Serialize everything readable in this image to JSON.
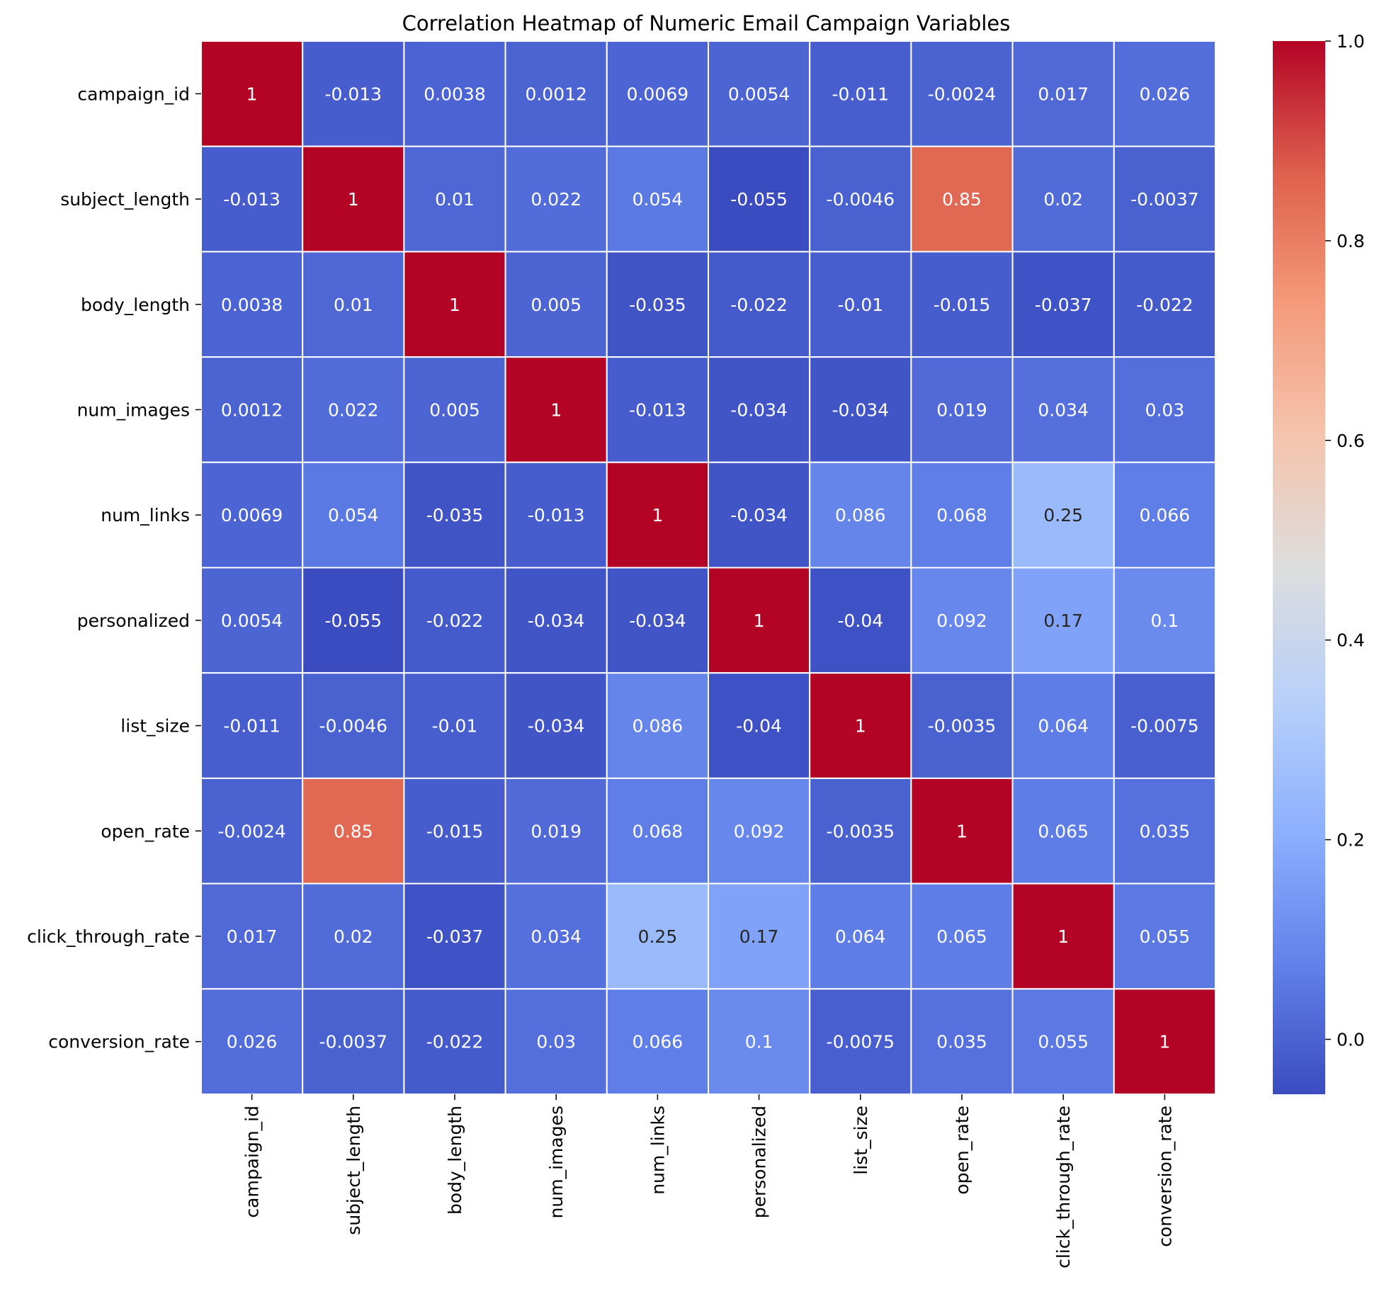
{
  "chart_data": {
    "type": "heatmap",
    "title": "Correlation Heatmap of Numeric Email Campaign Variables",
    "xlabel": "",
    "ylabel": "",
    "colormap": "coolwarm",
    "cell_border_color": "#ffffff",
    "rows": [
      "campaign_id",
      "subject_length",
      "body_length",
      "num_images",
      "num_links",
      "personalized",
      "list_size",
      "open_rate",
      "click_through_rate",
      "conversion_rate"
    ],
    "columns": [
      "campaign_id",
      "subject_length",
      "body_length",
      "num_images",
      "num_links",
      "personalized",
      "list_size",
      "open_rate",
      "click_through_rate",
      "conversion_rate"
    ],
    "values": [
      [
        1,
        -0.013,
        0.0038,
        0.0012,
        0.0069,
        0.0054,
        -0.011,
        -0.0024,
        0.017,
        0.026
      ],
      [
        -0.013,
        1,
        0.01,
        0.022,
        0.054,
        -0.055,
        -0.0046,
        0.85,
        0.02,
        -0.0037
      ],
      [
        0.0038,
        0.01,
        1,
        0.005,
        -0.035,
        -0.022,
        -0.01,
        -0.015,
        -0.037,
        -0.022
      ],
      [
        0.0012,
        0.022,
        0.005,
        1,
        -0.013,
        -0.034,
        -0.034,
        0.019,
        0.034,
        0.03
      ],
      [
        0.0069,
        0.054,
        -0.035,
        -0.013,
        1,
        -0.034,
        0.086,
        0.068,
        0.25,
        0.066
      ],
      [
        0.0054,
        -0.055,
        -0.022,
        -0.034,
        -0.034,
        1,
        -0.04,
        0.092,
        0.17,
        0.1
      ],
      [
        -0.011,
        -0.0046,
        -0.01,
        -0.034,
        0.086,
        -0.04,
        1,
        -0.0035,
        0.064,
        -0.0075
      ],
      [
        -0.0024,
        0.85,
        -0.015,
        0.019,
        0.068,
        0.092,
        -0.0035,
        1,
        0.065,
        0.035
      ],
      [
        0.017,
        0.02,
        -0.037,
        0.034,
        0.25,
        0.17,
        0.064,
        0.065,
        1,
        0.055
      ],
      [
        0.026,
        -0.0037,
        -0.022,
        0.03,
        0.066,
        0.1,
        -0.0075,
        0.035,
        0.055,
        1
      ]
    ],
    "labels": [
      [
        "1",
        "-0.013",
        "0.0038",
        "0.0012",
        "0.0069",
        "0.0054",
        "-0.011",
        "-0.0024",
        "0.017",
        "0.026"
      ],
      [
        "-0.013",
        "1",
        "0.01",
        "0.022",
        "0.054",
        "-0.055",
        "-0.0046",
        "0.85",
        "0.02",
        "-0.0037"
      ],
      [
        "0.0038",
        "0.01",
        "1",
        "0.005",
        "-0.035",
        "-0.022",
        "-0.01",
        "-0.015",
        "-0.037",
        "-0.022"
      ],
      [
        "0.0012",
        "0.022",
        "0.005",
        "1",
        "-0.013",
        "-0.034",
        "-0.034",
        "0.019",
        "0.034",
        "0.03"
      ],
      [
        "0.0069",
        "0.054",
        "-0.035",
        "-0.013",
        "1",
        "-0.034",
        "0.086",
        "0.068",
        "0.25",
        "0.066"
      ],
      [
        "0.0054",
        "-0.055",
        "-0.022",
        "-0.034",
        "-0.034",
        "1",
        "-0.04",
        "0.092",
        "0.17",
        "0.1"
      ],
      [
        "-0.011",
        "-0.0046",
        "-0.01",
        "-0.034",
        "0.086",
        "-0.04",
        "1",
        "-0.0035",
        "0.064",
        "-0.0075"
      ],
      [
        "-0.0024",
        "0.85",
        "-0.015",
        "0.019",
        "0.068",
        "0.092",
        "-0.0035",
        "1",
        "0.065",
        "0.035"
      ],
      [
        "0.017",
        "0.02",
        "-0.037",
        "0.034",
        "0.25",
        "0.17",
        "0.064",
        "0.065",
        "1",
        "0.055"
      ],
      [
        "0.026",
        "-0.0037",
        "-0.022",
        "0.03",
        "0.066",
        "0.1",
        "-0.0075",
        "0.035",
        "0.055",
        "1"
      ]
    ],
    "colorbar": {
      "vmin": -0.055,
      "vmax": 1.0,
      "ticks": [
        0.0,
        0.2,
        0.4,
        0.6,
        0.8,
        1.0
      ],
      "tick_labels": [
        "0.0",
        "0.2",
        "0.4",
        "0.6",
        "0.8",
        "1.0"
      ]
    },
    "grid": false,
    "legend": "colorbar-right"
  }
}
